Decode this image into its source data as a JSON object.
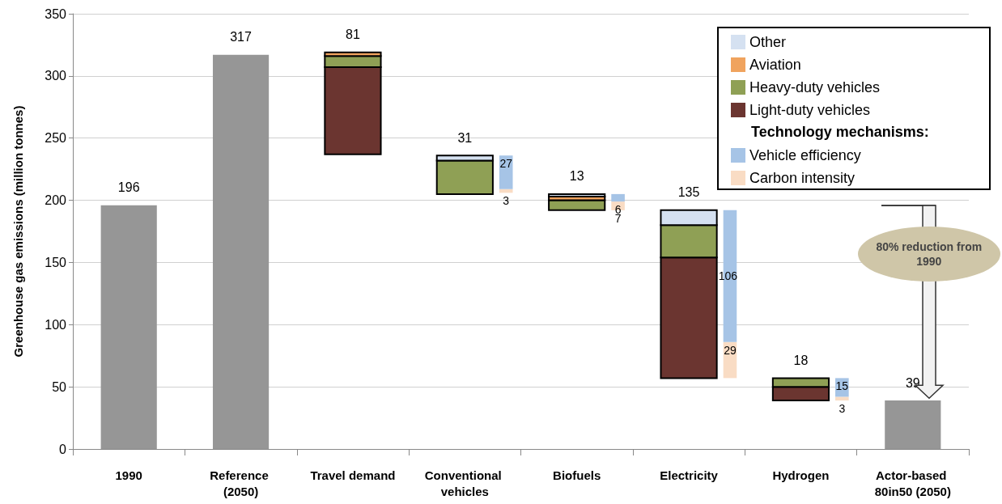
{
  "chart_data": {
    "type": "bar",
    "ylabel": "Greenhouse gas emissions (million tonnes)",
    "categories": [
      "1990",
      "Reference (2050)",
      "Travel demand",
      "Conventional vehicles",
      "Biofuels",
      "Electricity",
      "Hydrogen",
      "Actor-based 80in50 (2050)"
    ],
    "series": [
      {
        "color": "#969696",
        "values": [
          196,
          317,
          null,
          null,
          null,
          null,
          null,
          39
        ],
        "value_labels": [
          "196",
          "317",
          null,
          null,
          null,
          null,
          null,
          "39"
        ]
      },
      {
        "name": "Light-duty vehicles",
        "color": "#6b3530",
        "base": [
          null,
          null,
          237,
          null,
          null,
          57,
          39,
          null
        ],
        "values": [
          null,
          null,
          70,
          null,
          null,
          97,
          11,
          null
        ]
      },
      {
        "name": "Heavy-duty vehicles",
        "color": "#8fa055",
        "base": [
          null,
          null,
          307,
          205,
          192,
          154,
          50,
          null
        ],
        "values": [
          null,
          null,
          9,
          27,
          8,
          26,
          7,
          null
        ]
      },
      {
        "name": "Aviation",
        "color": "#f0a35e",
        "base": [
          null,
          null,
          316,
          null,
          200,
          null,
          null,
          null
        ],
        "values": [
          null,
          null,
          3,
          null,
          3,
          null,
          null,
          null
        ]
      },
      {
        "name": "Other",
        "color": "#d5e1f1",
        "base": [
          null,
          null,
          null,
          232,
          203,
          180,
          null,
          null
        ],
        "values": [
          null,
          null,
          null,
          4,
          2,
          12,
          null,
          null
        ]
      },
      {
        "name": "Carbon intensity",
        "color": "#f9dcc4",
        "base": [
          null,
          null,
          null,
          206,
          192,
          57,
          39,
          null
        ],
        "values": [
          null,
          null,
          null,
          3,
          7,
          29,
          3,
          null
        ],
        "value_labels": [
          null,
          null,
          null,
          "3",
          "7",
          "29",
          "3",
          null
        ]
      },
      {
        "name": "Vehicle efficiency",
        "color": "#a6c4e6",
        "base": [
          null,
          null,
          null,
          209,
          199,
          86,
          42,
          null
        ],
        "values": [
          null,
          null,
          null,
          27,
          6,
          106,
          15,
          null
        ],
        "value_labels": [
          null,
          null,
          null,
          "27",
          "6",
          "106",
          "15",
          null
        ]
      }
    ],
    "legend_title": "Technology mechanisms:",
    "annotations": [
      {
        "text": "81",
        "x": "Travel demand",
        "y": 319
      },
      {
        "text": "31",
        "x": "Conventional vehicles",
        "y": 236
      },
      {
        "text": "13",
        "x": "Biofuels",
        "y": 205
      },
      {
        "text": "135",
        "x": "Electricity",
        "y": 192
      },
      {
        "text": "18",
        "x": "Hydrogen",
        "y": 57
      },
      "80% reduction from 1990"
    ],
    "ylim": [
      0,
      350
    ],
    "yticks": [
      0,
      50,
      100,
      150,
      200,
      250,
      300,
      350
    ],
    "grid": "y",
    "legend": "top right"
  }
}
